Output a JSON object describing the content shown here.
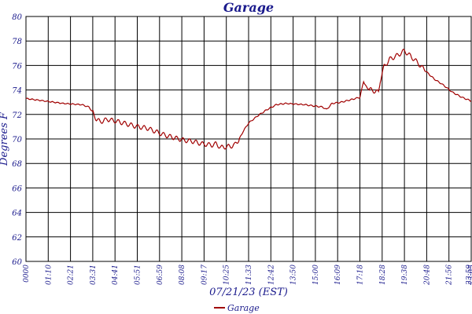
{
  "chart_data": {
    "type": "line",
    "title": "Garage",
    "xlabel": "07/21/23 (EST)",
    "ylabel": "Degrees F",
    "ylim": [
      60,
      80
    ],
    "y_ticks": [
      "60",
      "62",
      "64",
      "66",
      "68",
      "70",
      "72",
      "74",
      "76",
      "78",
      "80"
    ],
    "x_ticks": [
      "0000",
      "01:10",
      "02:21",
      "03:31",
      "04:41",
      "05:51",
      "06:59",
      "08:08",
      "09:17",
      "10:25",
      "11:33",
      "12:42",
      "13:50",
      "15:00",
      "16:09",
      "17:18",
      "18:28",
      "19:38",
      "20:48",
      "21:56",
      "23:05",
      "23:59"
    ],
    "grid": true,
    "legend_position": "bottom-center",
    "colors": {
      "series": "#a00000",
      "grid": "#000000",
      "text": "#1a1a8c"
    },
    "series": [
      {
        "name": "Garage",
        "x": [
          0.0,
          1.0,
          2.0,
          3.0,
          3.4,
          3.6,
          3.8,
          4.0,
          4.4,
          5.0,
          5.5,
          6.0,
          6.5,
          7.0,
          7.5,
          8.0,
          8.5,
          9.0,
          9.5,
          10.0,
          10.25,
          10.5,
          11.0,
          11.25,
          11.5,
          11.7,
          12.0,
          12.5,
          13.0,
          13.5,
          14.0,
          15.0,
          15.5,
          16.0,
          16.2,
          16.5,
          17.0,
          17.5,
          18.0,
          18.2,
          18.4,
          18.6,
          19.0,
          19.1,
          19.3,
          19.6,
          20.0,
          20.4,
          20.7,
          21.0,
          21.5,
          22.0,
          22.5,
          23.0,
          23.5,
          24.0
        ],
        "values": [
          73.3,
          73.1,
          72.9,
          72.8,
          72.6,
          72.2,
          71.6,
          71.4,
          71.6,
          71.4,
          71.2,
          71.0,
          70.9,
          70.6,
          70.3,
          70.1,
          69.9,
          69.8,
          69.6,
          69.5,
          69.6,
          69.3,
          69.4,
          69.5,
          70.0,
          70.6,
          71.3,
          71.9,
          72.4,
          72.8,
          72.9,
          72.8,
          72.7,
          72.6,
          72.4,
          72.9,
          73.0,
          73.2,
          73.4,
          74.7,
          74.1,
          74.0,
          73.8,
          74.8,
          75.9,
          76.5,
          76.8,
          77.2,
          76.8,
          76.4,
          75.6,
          74.9,
          74.4,
          73.8,
          73.4,
          73.1
        ]
      }
    ]
  }
}
